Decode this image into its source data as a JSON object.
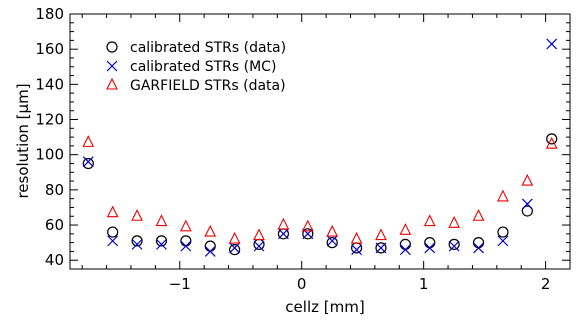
{
  "chart_data": {
    "type": "scatter",
    "xlabel": "cellz [mm]",
    "ylabel": "resolution [μm]",
    "xlim": [
      -1.9,
      2.2
    ],
    "ylim": [
      35,
      180
    ],
    "x_ticks": [
      -1,
      0,
      1,
      2
    ],
    "x_tick_labels": [
      "−1",
      "0",
      "1",
      "2"
    ],
    "y_ticks": [
      40,
      60,
      80,
      100,
      120,
      140,
      160,
      180
    ],
    "y_tick_labels": [
      "40",
      "60",
      "80",
      "100",
      "120",
      "140",
      "160",
      "180"
    ],
    "legend_position": "top-left",
    "grid": false,
    "series": [
      {
        "name": "calibrated STRs (data)",
        "marker": "circle",
        "color": "#000000",
        "x": [
          -1.75,
          -1.55,
          -1.35,
          -1.15,
          -0.95,
          -0.75,
          -0.55,
          -0.35,
          -0.15,
          0.05,
          0.25,
          0.45,
          0.65,
          0.85,
          1.05,
          1.25,
          1.45,
          1.65,
          1.85,
          2.05
        ],
        "y": [
          95,
          56,
          51,
          51,
          51,
          48,
          46,
          49,
          55,
          55,
          50,
          47,
          47,
          49,
          50,
          49,
          50,
          56,
          68,
          109
        ]
      },
      {
        "name": "calibrated STRs (MC)",
        "marker": "x",
        "color": "#0000cc",
        "x": [
          -1.75,
          -1.55,
          -1.35,
          -1.15,
          -0.95,
          -0.75,
          -0.55,
          -0.35,
          -0.15,
          0.05,
          0.25,
          0.45,
          0.65,
          0.85,
          1.05,
          1.25,
          1.45,
          1.65,
          1.85,
          2.05
        ],
        "y": [
          96,
          51,
          49,
          49,
          48,
          45,
          47,
          48,
          55,
          55,
          51,
          46,
          47,
          46,
          47,
          48,
          47,
          51,
          72,
          163
        ]
      },
      {
        "name": "GARFIELD STRs (data)",
        "marker": "triangle",
        "color": "#ee0000",
        "x": [
          -1.75,
          -1.55,
          -1.35,
          -1.15,
          -0.95,
          -0.75,
          -0.55,
          -0.35,
          -0.15,
          0.05,
          0.25,
          0.45,
          0.65,
          0.85,
          1.05,
          1.25,
          1.45,
          1.65,
          1.85,
          2.05
        ],
        "y": [
          107,
          67,
          65,
          62,
          59,
          56,
          52,
          54,
          60,
          59,
          56,
          52,
          54,
          57,
          62,
          61,
          65,
          76,
          85,
          106
        ]
      }
    ]
  }
}
